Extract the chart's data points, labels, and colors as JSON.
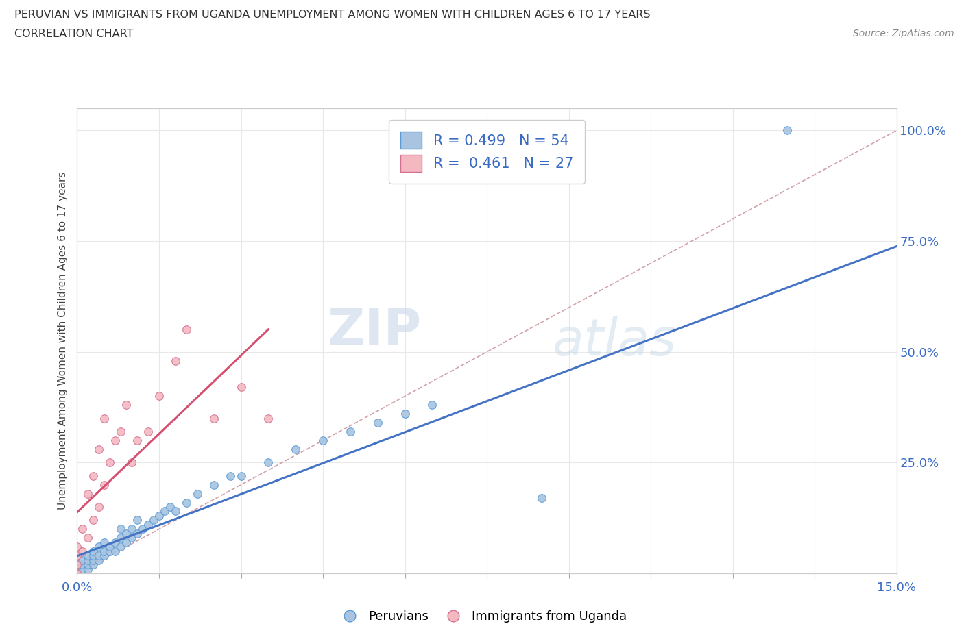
{
  "title_line1": "PERUVIAN VS IMMIGRANTS FROM UGANDA UNEMPLOYMENT AMONG WOMEN WITH CHILDREN AGES 6 TO 17 YEARS",
  "title_line2": "CORRELATION CHART",
  "source": "Source: ZipAtlas.com",
  "ylabel": "Unemployment Among Women with Children Ages 6 to 17 years",
  "xlim": [
    0.0,
    0.15
  ],
  "ylim": [
    0.0,
    1.05
  ],
  "ytick_values": [
    0.0,
    0.25,
    0.5,
    0.75,
    1.0
  ],
  "xtick_values": [
    0.0,
    0.015,
    0.03,
    0.045,
    0.06,
    0.075,
    0.09,
    0.105,
    0.12,
    0.135,
    0.15
  ],
  "peruvian_color": "#a8c4e0",
  "peruvian_edge": "#5b9bd5",
  "uganda_color": "#f4b8c1",
  "uganda_edge": "#d47090",
  "trendline_peru_color": "#4472c4",
  "trendline_uganda_color": "#d45070",
  "diagonal_color": "#d0a0a8",
  "R_peru": 0.499,
  "N_peru": 54,
  "R_uganda": 0.461,
  "N_uganda": 27,
  "peruvians_x": [
    0.0,
    0.0,
    0.0,
    0.001,
    0.001,
    0.001,
    0.002,
    0.002,
    0.002,
    0.002,
    0.003,
    0.003,
    0.003,
    0.003,
    0.004,
    0.004,
    0.004,
    0.005,
    0.005,
    0.005,
    0.006,
    0.006,
    0.007,
    0.007,
    0.008,
    0.008,
    0.008,
    0.009,
    0.009,
    0.01,
    0.01,
    0.011,
    0.011,
    0.012,
    0.013,
    0.014,
    0.015,
    0.016,
    0.017,
    0.018,
    0.02,
    0.022,
    0.025,
    0.028,
    0.03,
    0.035,
    0.04,
    0.045,
    0.05,
    0.055,
    0.06,
    0.065,
    0.085,
    0.13
  ],
  "peruvians_y": [
    0.0,
    0.01,
    0.02,
    0.01,
    0.02,
    0.03,
    0.01,
    0.02,
    0.03,
    0.04,
    0.02,
    0.03,
    0.04,
    0.05,
    0.03,
    0.04,
    0.06,
    0.04,
    0.05,
    0.07,
    0.05,
    0.06,
    0.05,
    0.07,
    0.06,
    0.08,
    0.1,
    0.07,
    0.09,
    0.08,
    0.1,
    0.09,
    0.12,
    0.1,
    0.11,
    0.12,
    0.13,
    0.14,
    0.15,
    0.14,
    0.16,
    0.18,
    0.2,
    0.22,
    0.22,
    0.25,
    0.28,
    0.3,
    0.32,
    0.34,
    0.36,
    0.38,
    0.17,
    1.0
  ],
  "uganda_x": [
    0.0,
    0.0,
    0.0,
    0.0,
    0.001,
    0.001,
    0.002,
    0.002,
    0.003,
    0.003,
    0.004,
    0.004,
    0.005,
    0.005,
    0.006,
    0.007,
    0.008,
    0.009,
    0.01,
    0.011,
    0.013,
    0.015,
    0.018,
    0.02,
    0.025,
    0.03,
    0.035
  ],
  "uganda_y": [
    0.0,
    0.02,
    0.04,
    0.06,
    0.05,
    0.1,
    0.08,
    0.18,
    0.12,
    0.22,
    0.15,
    0.28,
    0.2,
    0.35,
    0.25,
    0.3,
    0.32,
    0.38,
    0.25,
    0.3,
    0.32,
    0.4,
    0.48,
    0.55,
    0.35,
    0.42,
    0.35
  ],
  "watermark_zip": "ZIP",
  "watermark_atlas": "atlas",
  "background_color": "#ffffff",
  "grid_color": "#e8e8e8",
  "legend_color": "#3a6bc4",
  "tick_color": "#3a6bc4"
}
